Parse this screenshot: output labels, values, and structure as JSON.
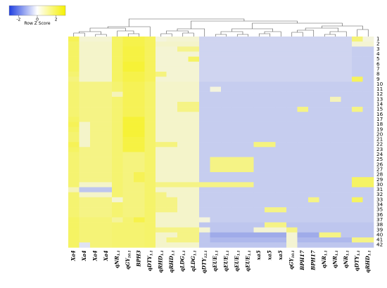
{
  "legend": {
    "title": "Row Z Score",
    "ticks": [
      "-2",
      "0",
      "2"
    ],
    "tick_values": [
      -2,
      0,
      2
    ],
    "range": [
      -3,
      3
    ],
    "colors": {
      "low": "#1f3fe0",
      "mid": "#ffffff",
      "high": "#f5f000"
    }
  },
  "colors": {
    "low": "#2a47d8",
    "mid": "#f4f4f6",
    "high": "#f6f231"
  },
  "chart_data": {
    "type": "heatmap",
    "title": "",
    "xlabel": "",
    "ylabel": "",
    "rows": [
      "1",
      "2",
      "3",
      "4",
      "5",
      "6",
      "7",
      "8",
      "9",
      "10",
      "11",
      "12",
      "13",
      "14",
      "15",
      "16",
      "17",
      "18",
      "19",
      "20",
      "21",
      "22",
      "23",
      "24",
      "25",
      "26",
      "27",
      "28",
      "29",
      "30",
      "31",
      "32",
      "33",
      "34",
      "35",
      "36",
      "37",
      "38",
      "39",
      "40",
      "41",
      "42"
    ],
    "columns": [
      {
        "base": "Xa4",
        "sub": ""
      },
      {
        "base": "Xa4",
        "sub": ""
      },
      {
        "base": "Xa4",
        "sub": ""
      },
      {
        "base": "Xa4",
        "sub": ""
      },
      {
        "base": "qNR",
        "sub": "1.1"
      },
      {
        "base": "qGY",
        "sub": "10.1"
      },
      {
        "base": "BPH3",
        "sub": ""
      },
      {
        "base": "qDTY",
        "sub": "1.1"
      },
      {
        "base": "qRHD",
        "sub": "1.1"
      },
      {
        "base": "qRHD",
        "sub": "1.1"
      },
      {
        "base": "qLDG",
        "sub": "1.1"
      },
      {
        "base": "qLDG",
        "sub": "1.1"
      },
      {
        "base": "qDTY",
        "sub": "12.1"
      },
      {
        "base": "qEUE",
        "sub": "1.1"
      },
      {
        "base": "qEUE",
        "sub": "1.1"
      },
      {
        "base": "qEUE",
        "sub": "1.1"
      },
      {
        "base": "qEUE",
        "sub": "1.1"
      },
      {
        "base": "xa5",
        "sub": ""
      },
      {
        "base": "xa5",
        "sub": ""
      },
      {
        "base": "xa5",
        "sub": ""
      },
      {
        "base": "qGY",
        "sub": "10.1"
      },
      {
        "base": "BPH17",
        "sub": ""
      },
      {
        "base": "BPH17",
        "sub": ""
      },
      {
        "base": "qNR",
        "sub": "1.1"
      },
      {
        "base": "qNR",
        "sub": "1.1"
      },
      {
        "base": "qNR",
        "sub": "1.1"
      },
      {
        "base": "qDTY",
        "sub": "1.1"
      },
      {
        "base": "qRHD",
        "sub": "1.1"
      }
    ],
    "values": [
      [
        2.0,
        0.3,
        0.3,
        0.3,
        1.8,
        2.2,
        2.2,
        1.9,
        0.2,
        0.3,
        0.3,
        0.3,
        -0.4,
        -0.4,
        -0.4,
        -0.4,
        -0.4,
        -0.4,
        -0.4,
        -0.4,
        -0.4,
        -0.4,
        -0.4,
        -0.4,
        -0.4,
        -0.4,
        1.5,
        0.2
      ],
      [
        1.8,
        0.4,
        0.4,
        0.4,
        1.8,
        2.2,
        2.2,
        1.9,
        0.4,
        0.4,
        0.4,
        0.4,
        -0.4,
        -0.4,
        -0.4,
        -0.4,
        -0.4,
        -0.4,
        -0.4,
        -0.4,
        -0.4,
        -0.4,
        -0.4,
        -0.4,
        -0.4,
        -0.4,
        0.3,
        0.3
      ],
      [
        1.8,
        0.4,
        0.4,
        0.4,
        1.8,
        2.3,
        2.3,
        1.9,
        0.3,
        0.3,
        1.2,
        1.2,
        -0.4,
        -0.4,
        -0.4,
        -0.4,
        -0.4,
        -0.4,
        -0.4,
        -0.4,
        -0.4,
        -0.4,
        -0.4,
        -0.4,
        -0.4,
        -0.4,
        -0.5,
        -0.5
      ],
      [
        1.8,
        0.4,
        0.4,
        0.4,
        1.8,
        2.3,
        2.3,
        1.9,
        0.3,
        0.3,
        0.3,
        0.3,
        -0.4,
        -0.4,
        -0.4,
        -0.4,
        -0.4,
        -0.4,
        -0.4,
        -0.4,
        -0.4,
        -0.4,
        -0.4,
        -0.4,
        -0.4,
        -0.4,
        -0.5,
        -0.5
      ],
      [
        1.8,
        0.4,
        0.4,
        0.4,
        1.8,
        2.3,
        2.3,
        1.9,
        0.3,
        0.3,
        0.3,
        1.8,
        -0.4,
        -0.4,
        -0.4,
        -0.4,
        -0.4,
        -0.4,
        -0.4,
        -0.4,
        -0.4,
        -0.4,
        -0.4,
        -0.4,
        -0.4,
        -0.4,
        -0.5,
        -0.5
      ],
      [
        1.8,
        0.4,
        0.4,
        0.4,
        1.8,
        2.5,
        2.5,
        1.9,
        0.3,
        0.3,
        0.3,
        0.3,
        -0.4,
        -0.4,
        -0.4,
        -0.4,
        -0.4,
        -0.4,
        -0.4,
        -0.4,
        -0.4,
        -0.4,
        -0.4,
        -0.4,
        -0.4,
        -0.4,
        -0.5,
        -0.5
      ],
      [
        1.8,
        0.4,
        0.4,
        0.4,
        1.8,
        2.5,
        2.5,
        1.9,
        0.3,
        0.3,
        0.3,
        0.3,
        -0.4,
        -0.4,
        -0.4,
        -0.4,
        -0.4,
        -0.4,
        -0.4,
        -0.4,
        -0.4,
        -0.4,
        -0.4,
        -0.4,
        -0.4,
        -0.4,
        -0.5,
        -0.5
      ],
      [
        1.6,
        0.4,
        0.4,
        0.4,
        1.8,
        2.2,
        2.2,
        1.9,
        1.4,
        0.3,
        0.3,
        0.3,
        -0.4,
        -0.4,
        -0.4,
        -0.4,
        -0.4,
        -0.4,
        -0.4,
        -0.4,
        -0.4,
        -0.4,
        -0.4,
        -0.4,
        -0.4,
        -0.4,
        -0.5,
        -0.5
      ],
      [
        1.4,
        0.4,
        0.4,
        0.4,
        1.8,
        2.2,
        2.2,
        1.9,
        0.3,
        0.3,
        0.3,
        0.3,
        -0.4,
        -0.4,
        -0.4,
        -0.4,
        -0.4,
        -0.4,
        -0.4,
        -0.4,
        -0.4,
        -0.4,
        -0.4,
        -0.4,
        -0.4,
        -0.4,
        1.9,
        -0.5
      ],
      [
        1.6,
        1.3,
        1.3,
        1.3,
        1.6,
        2.0,
        2.0,
        1.7,
        0.4,
        0.4,
        0.4,
        0.4,
        -0.5,
        -0.5,
        -0.5,
        -0.5,
        -0.5,
        -0.5,
        -0.5,
        -0.5,
        -0.5,
        -0.5,
        -0.5,
        -0.5,
        -0.5,
        -0.5,
        -0.5,
        -0.5
      ],
      [
        1.6,
        1.3,
        1.3,
        1.3,
        1.6,
        2.0,
        2.0,
        1.7,
        0.4,
        0.4,
        0.4,
        0.4,
        -0.5,
        0.2,
        -0.5,
        -0.5,
        -0.5,
        -0.5,
        -0.5,
        -0.5,
        -0.5,
        -0.5,
        -0.5,
        -0.5,
        -0.5,
        -0.5,
        -0.5,
        -0.5
      ],
      [
        1.6,
        1.3,
        1.3,
        1.3,
        0.6,
        2.0,
        2.0,
        1.7,
        0.4,
        0.4,
        0.4,
        0.4,
        -0.5,
        -0.5,
        -0.5,
        -0.5,
        -0.5,
        -0.5,
        -0.5,
        -0.5,
        -0.5,
        -0.5,
        -0.5,
        -0.5,
        -0.5,
        -0.5,
        -0.5,
        -0.5
      ],
      [
        1.6,
        1.3,
        1.3,
        1.3,
        1.6,
        2.0,
        2.0,
        1.7,
        0.4,
        0.4,
        0.4,
        0.4,
        -0.5,
        -0.5,
        -0.5,
        -0.5,
        -0.5,
        -0.5,
        -0.5,
        -0.5,
        -0.5,
        -0.5,
        -0.5,
        -0.5,
        0.6,
        -0.5,
        -0.5,
        -0.5
      ],
      [
        1.6,
        1.3,
        1.3,
        1.3,
        1.6,
        2.0,
        2.0,
        1.7,
        0.4,
        0.4,
        1.3,
        1.3,
        -0.5,
        -0.5,
        -0.5,
        -0.5,
        -0.5,
        -0.5,
        -0.5,
        -0.5,
        -0.5,
        -0.5,
        -0.5,
        -0.5,
        -0.5,
        -0.5,
        -0.5,
        -0.5
      ],
      [
        1.6,
        1.3,
        1.3,
        1.3,
        1.6,
        2.0,
        2.0,
        1.7,
        0.4,
        0.4,
        1.3,
        1.3,
        -0.5,
        -0.5,
        -0.5,
        -0.5,
        -0.5,
        -0.5,
        -0.5,
        -0.5,
        -0.5,
        1.3,
        -0.5,
        -0.5,
        -0.5,
        -0.5,
        1.3,
        -0.5
      ],
      [
        1.6,
        1.3,
        1.3,
        1.3,
        1.6,
        2.0,
        2.0,
        1.7,
        0.4,
        0.4,
        0.4,
        0.4,
        -0.5,
        -0.5,
        -0.5,
        -0.5,
        -0.5,
        -0.5,
        -0.5,
        -0.5,
        -0.5,
        -0.5,
        -0.5,
        -0.5,
        -0.5,
        -0.5,
        -0.5,
        -0.5
      ],
      [
        1.8,
        1.3,
        1.3,
        1.3,
        1.6,
        2.5,
        2.5,
        1.7,
        0.4,
        0.4,
        0.4,
        0.4,
        -0.5,
        -0.5,
        -0.5,
        -0.5,
        -0.5,
        -0.5,
        -0.5,
        -0.5,
        -0.5,
        -0.5,
        -0.5,
        -0.5,
        -0.5,
        -0.5,
        -0.5,
        -0.5
      ],
      [
        2.0,
        0.4,
        1.3,
        1.3,
        1.6,
        2.5,
        2.5,
        1.7,
        0.4,
        0.4,
        0.4,
        0.4,
        -0.5,
        -0.5,
        -0.5,
        -0.5,
        -0.5,
        -0.5,
        -0.5,
        -0.5,
        -0.5,
        -0.5,
        -0.5,
        -0.5,
        -0.5,
        -0.5,
        -0.5,
        -0.5
      ],
      [
        1.8,
        0.4,
        1.3,
        1.3,
        1.6,
        2.5,
        2.5,
        1.7,
        0.4,
        0.4,
        0.4,
        0.4,
        -0.5,
        -0.5,
        -0.5,
        -0.5,
        -0.5,
        -0.5,
        -0.5,
        -0.5,
        -0.5,
        -0.5,
        -0.5,
        -0.5,
        -0.5,
        -0.5,
        -0.5,
        -0.5
      ],
      [
        1.6,
        0.4,
        1.3,
        1.3,
        1.6,
        2.5,
        2.5,
        1.7,
        0.4,
        0.4,
        0.4,
        0.4,
        -0.5,
        -0.5,
        -0.5,
        -0.5,
        -0.5,
        -0.5,
        -0.5,
        -0.5,
        -0.5,
        -0.5,
        -0.5,
        -0.5,
        -0.5,
        -0.5,
        -0.5,
        -0.5
      ],
      [
        1.6,
        0.4,
        1.3,
        1.3,
        1.6,
        2.3,
        2.3,
        1.7,
        0.4,
        0.4,
        0.4,
        0.4,
        -0.5,
        -0.5,
        -0.5,
        -0.5,
        -0.5,
        -0.5,
        -0.5,
        -0.5,
        -0.5,
        -0.5,
        -0.5,
        -0.5,
        -0.5,
        -0.5,
        -0.5,
        -0.5
      ],
      [
        2.0,
        0.4,
        1.3,
        1.3,
        1.6,
        2.3,
        2.3,
        1.7,
        1.4,
        1.4,
        0.4,
        0.4,
        -0.5,
        -0.5,
        -0.5,
        -0.5,
        -0.5,
        1.4,
        1.4,
        -0.5,
        -0.5,
        -0.5,
        -0.5,
        -0.5,
        -0.5,
        -0.5,
        -0.5,
        -0.5
      ],
      [
        1.8,
        1.3,
        1.3,
        1.3,
        1.6,
        2.3,
        2.3,
        1.7,
        0.4,
        0.4,
        0.4,
        0.4,
        -0.5,
        -0.5,
        -0.5,
        -0.5,
        -0.5,
        -0.5,
        -0.5,
        -0.5,
        -0.5,
        -0.5,
        -0.5,
        -0.5,
        -0.5,
        -0.5,
        -0.5,
        -0.5
      ],
      [
        1.6,
        1.3,
        1.3,
        1.3,
        1.6,
        1.4,
        1.4,
        1.7,
        0.4,
        0.4,
        0.4,
        0.4,
        -0.5,
        -0.5,
        -0.5,
        -0.5,
        -0.5,
        -0.5,
        -0.5,
        -0.5,
        -0.5,
        -0.5,
        -0.5,
        -0.5,
        -0.5,
        -0.5,
        -0.5,
        -0.5
      ],
      [
        1.6,
        1.3,
        1.3,
        1.3,
        1.6,
        1.4,
        1.4,
        1.7,
        0.4,
        0.4,
        0.4,
        0.4,
        -0.5,
        1.3,
        1.3,
        1.3,
        1.3,
        -0.5,
        -0.5,
        -0.5,
        -0.5,
        -0.5,
        -0.5,
        -0.5,
        -0.5,
        -0.5,
        -0.5,
        -0.5
      ],
      [
        1.6,
        1.3,
        1.3,
        1.3,
        1.6,
        1.4,
        1.4,
        1.7,
        0.4,
        0.4,
        0.4,
        0.4,
        -0.5,
        1.3,
        1.3,
        1.3,
        1.3,
        -0.5,
        -0.5,
        -0.5,
        -0.5,
        -0.5,
        -0.5,
        -0.5,
        -0.5,
        -0.5,
        -0.5,
        -0.5
      ],
      [
        1.6,
        1.3,
        1.3,
        1.3,
        1.6,
        1.4,
        1.4,
        1.7,
        0.4,
        0.4,
        0.4,
        0.4,
        -0.5,
        1.3,
        1.3,
        1.3,
        1.3,
        -0.5,
        -0.5,
        -0.5,
        -0.5,
        -0.5,
        -0.5,
        -0.5,
        -0.5,
        -0.5,
        -0.5,
        -0.5
      ],
      [
        1.6,
        1.3,
        1.3,
        1.3,
        1.6,
        1.4,
        2.0,
        1.7,
        0.4,
        0.4,
        0.4,
        0.4,
        -0.5,
        -0.5,
        -0.5,
        -0.5,
        -0.5,
        -0.5,
        -0.5,
        -0.5,
        -0.5,
        -0.5,
        -0.5,
        -0.5,
        -0.5,
        -0.5,
        -0.5,
        -0.5
      ],
      [
        1.6,
        1.3,
        1.3,
        1.3,
        1.6,
        1.4,
        2.0,
        1.7,
        0.4,
        0.4,
        0.4,
        0.4,
        -0.5,
        -0.5,
        -0.5,
        -0.5,
        -0.5,
        -0.5,
        -0.5,
        -0.5,
        -0.5,
        -0.5,
        -0.5,
        -0.5,
        -0.5,
        -0.5,
        1.8,
        1.8
      ],
      [
        1.6,
        0.4,
        0.4,
        0.4,
        1.6,
        1.4,
        1.4,
        1.7,
        1.3,
        1.3,
        1.3,
        1.3,
        1.3,
        1.3,
        1.3,
        1.3,
        1.3,
        -0.5,
        -0.5,
        -0.5,
        -0.5,
        -0.5,
        -0.5,
        -0.5,
        -0.5,
        -0.5,
        1.8,
        1.8
      ],
      [
        0.6,
        -0.6,
        -0.6,
        -0.6,
        1.6,
        1.4,
        1.4,
        1.7,
        0.4,
        0.4,
        0.4,
        0.4,
        -0.5,
        -0.5,
        -0.5,
        -0.5,
        -0.5,
        -0.5,
        -0.5,
        -0.5,
        -0.5,
        -0.5,
        -0.5,
        -0.5,
        -0.5,
        -0.5,
        -0.5,
        -0.5
      ],
      [
        1.6,
        0.4,
        0.4,
        0.4,
        1.6,
        1.4,
        1.4,
        1.7,
        1.3,
        0.4,
        0.4,
        0.4,
        -0.5,
        -0.5,
        -0.5,
        -0.5,
        -0.5,
        -0.5,
        -0.5,
        -0.5,
        -0.5,
        -0.5,
        -0.5,
        -0.5,
        -0.5,
        -0.5,
        -0.5,
        -0.5
      ],
      [
        1.6,
        1.3,
        1.3,
        1.3,
        0.3,
        1.4,
        1.4,
        1.7,
        1.3,
        1.3,
        0.4,
        0.4,
        -0.5,
        -0.5,
        -0.5,
        -0.5,
        -0.5,
        -0.5,
        -0.5,
        -0.5,
        -0.5,
        -0.5,
        1.3,
        -0.5,
        -0.5,
        -0.5,
        1.8,
        -0.5
      ],
      [
        1.6,
        1.3,
        1.3,
        1.3,
        1.6,
        1.4,
        1.4,
        1.7,
        1.3,
        1.3,
        0.4,
        0.4,
        -0.5,
        -0.5,
        -0.5,
        -0.5,
        -0.5,
        -0.5,
        -0.5,
        -0.5,
        -0.5,
        -0.5,
        -0.5,
        -0.5,
        -0.5,
        -0.5,
        -0.5,
        -0.5
      ],
      [
        1.6,
        1.3,
        1.3,
        1.3,
        1.6,
        1.4,
        1.4,
        1.7,
        1.3,
        1.3,
        0.4,
        0.4,
        -0.5,
        -0.5,
        -0.5,
        -0.5,
        -0.5,
        -0.5,
        1.3,
        1.3,
        -0.5,
        -0.5,
        -0.5,
        -0.5,
        -0.5,
        -0.5,
        -0.5,
        -0.5
      ],
      [
        1.6,
        1.3,
        1.3,
        1.3,
        1.6,
        1.4,
        1.4,
        1.7,
        0.4,
        0.4,
        0.4,
        0.4,
        -0.5,
        -0.5,
        -0.5,
        -0.5,
        -0.5,
        -0.5,
        -0.5,
        -0.5,
        -0.5,
        -0.5,
        -0.5,
        -0.5,
        -0.5,
        -0.5,
        -0.5,
        -0.5
      ],
      [
        1.8,
        1.5,
        1.5,
        1.5,
        1.0,
        1.6,
        2.2,
        1.7,
        0.4,
        0.4,
        0.4,
        0.4,
        0.2,
        -0.5,
        -0.5,
        -0.5,
        -0.5,
        -0.5,
        -0.5,
        -0.5,
        -0.5,
        -0.5,
        -0.5,
        -0.5,
        -0.5,
        -0.5,
        -0.5,
        -0.5
      ],
      [
        1.8,
        1.5,
        1.5,
        1.5,
        1.6,
        1.6,
        1.6,
        1.7,
        0.4,
        0.4,
        0.4,
        0.4,
        -0.6,
        -0.6,
        -0.6,
        -0.6,
        -0.6,
        -0.6,
        1.3,
        1.3,
        -0.6,
        -0.6,
        -0.6,
        -0.6,
        -0.6,
        -0.6,
        -0.6,
        -0.6
      ],
      [
        1.8,
        1.5,
        1.5,
        1.5,
        1.6,
        1.6,
        1.6,
        1.7,
        1.3,
        1.3,
        1.3,
        1.3,
        0.3,
        -0.6,
        -0.6,
        -0.6,
        -0.6,
        0.3,
        0.3,
        0.3,
        1.3,
        -0.6,
        -0.6,
        -0.6,
        -0.6,
        -0.6,
        -0.6,
        -0.6
      ],
      [
        1.8,
        1.5,
        1.5,
        1.5,
        1.6,
        1.6,
        1.6,
        1.7,
        0.4,
        0.4,
        1.3,
        1.3,
        -0.6,
        -1.0,
        -1.0,
        -1.0,
        -1.0,
        -1.0,
        -1.0,
        -1.0,
        0.3,
        -1.0,
        -1.0,
        1.3,
        1.3,
        -0.6,
        -0.6,
        -0.6
      ],
      [
        1.8,
        1.5,
        1.5,
        1.5,
        1.6,
        1.6,
        1.6,
        1.7,
        0.4,
        1.3,
        1.3,
        1.3,
        -0.6,
        -0.8,
        -0.8,
        -0.8,
        -0.8,
        -0.8,
        -0.8,
        -0.8,
        0.3,
        -0.8,
        -0.8,
        -0.8,
        -0.8,
        -0.8,
        1.3,
        1.3
      ],
      [
        1.8,
        -0.2,
        1.5,
        1.5,
        1.6,
        1.6,
        1.6,
        1.7,
        0.4,
        0.4,
        0.4,
        0.4,
        -0.6,
        -0.6,
        -0.6,
        -0.6,
        -0.6,
        -0.6,
        -0.6,
        -0.6,
        0.3,
        -0.6,
        -0.6,
        -0.6,
        -0.6,
        -0.6,
        -0.6,
        -0.6
      ]
    ]
  }
}
